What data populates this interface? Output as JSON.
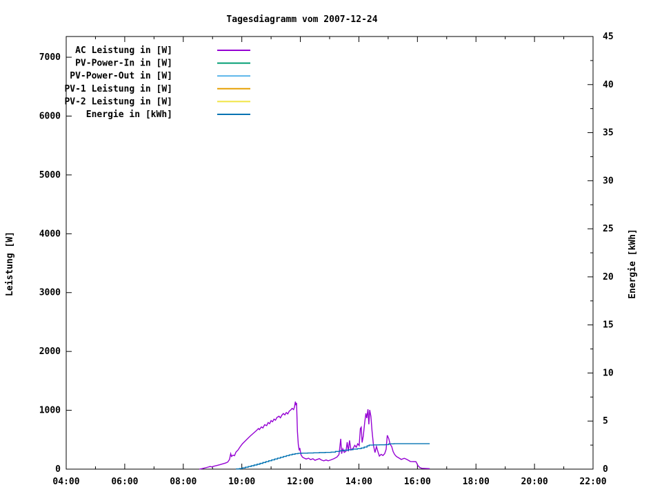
{
  "title": "Tagesdiagramm vom 2007-12-24",
  "colors": {
    "background": "#ffffff",
    "foreground": "#000000",
    "ac": "#9400d3",
    "pv_power_in": "#009e73",
    "pv_power_out": "#56b4e9",
    "pv1": "#e69f00",
    "pv2": "#f0e442",
    "energie": "#0072b2"
  },
  "chart_data": {
    "type": "line",
    "title": "Tagesdiagramm vom 2007-12-24",
    "x_axis": {
      "tick_labels": [
        "04:00",
        "06:00",
        "08:00",
        "10:00",
        "12:00",
        "14:00",
        "16:00",
        "18:00",
        "20:00",
        "22:00"
      ],
      "tick_hours": [
        4,
        6,
        8,
        10,
        12,
        14,
        16,
        18,
        20,
        22
      ],
      "minor_tick_hours": [
        5,
        7,
        9,
        11,
        13,
        15,
        17,
        19,
        21
      ],
      "range_hours": [
        4,
        22
      ],
      "grid": false
    },
    "y_axis": {
      "label": "Leistung [W]",
      "tick_values": [
        0,
        1000,
        2000,
        3000,
        4000,
        5000,
        6000,
        7000
      ],
      "range": [
        0,
        7352
      ]
    },
    "y2_axis": {
      "label": "Energie [kWh]",
      "tick_values": [
        0,
        5,
        10,
        15,
        20,
        25,
        30,
        35,
        40,
        45
      ],
      "minor_step": 2.5,
      "range": [
        0,
        45
      ]
    },
    "legend_position": "top-left-inside",
    "series": [
      {
        "name": "AC Leistung in [W]",
        "color": "#9400d3",
        "axis": "y1",
        "style": "line",
        "points": [
          [
            8.55,
            0
          ],
          [
            8.65,
            10
          ],
          [
            8.75,
            22
          ],
          [
            8.85,
            35
          ],
          [
            8.92,
            45
          ],
          [
            8.97,
            38
          ],
          [
            9.05,
            50
          ],
          [
            9.15,
            62
          ],
          [
            9.25,
            75
          ],
          [
            9.35,
            90
          ],
          [
            9.45,
            105
          ],
          [
            9.52,
            120
          ],
          [
            9.58,
            165
          ],
          [
            9.62,
            262
          ],
          [
            9.65,
            215
          ],
          [
            9.7,
            238
          ],
          [
            9.75,
            228
          ],
          [
            9.8,
            290
          ],
          [
            9.87,
            325
          ],
          [
            9.95,
            385
          ],
          [
            10.02,
            430
          ],
          [
            10.1,
            470
          ],
          [
            10.2,
            520
          ],
          [
            10.3,
            568
          ],
          [
            10.4,
            612
          ],
          [
            10.5,
            655
          ],
          [
            10.57,
            690
          ],
          [
            10.6,
            672
          ],
          [
            10.67,
            718
          ],
          [
            10.72,
            700
          ],
          [
            10.78,
            755
          ],
          [
            10.85,
            740
          ],
          [
            10.9,
            792
          ],
          [
            10.95,
            772
          ],
          [
            11.0,
            825
          ],
          [
            11.05,
            805
          ],
          [
            11.1,
            850
          ],
          [
            11.15,
            832
          ],
          [
            11.2,
            878
          ],
          [
            11.27,
            900
          ],
          [
            11.32,
            872
          ],
          [
            11.37,
            918
          ],
          [
            11.42,
            945
          ],
          [
            11.47,
            922
          ],
          [
            11.52,
            962
          ],
          [
            11.57,
            938
          ],
          [
            11.62,
            985
          ],
          [
            11.67,
            1005
          ],
          [
            11.72,
            1032
          ],
          [
            11.77,
            1012
          ],
          [
            11.8,
            1058
          ],
          [
            11.83,
            1148
          ],
          [
            11.85,
            1085
          ],
          [
            11.87,
            1125
          ],
          [
            11.9,
            640
          ],
          [
            11.93,
            420
          ],
          [
            11.96,
            320
          ],
          [
            11.98,
            360
          ],
          [
            12.02,
            248
          ],
          [
            12.07,
            205
          ],
          [
            12.12,
            190
          ],
          [
            12.2,
            172
          ],
          [
            12.28,
            186
          ],
          [
            12.35,
            162
          ],
          [
            12.43,
            176
          ],
          [
            12.5,
            150
          ],
          [
            12.58,
            166
          ],
          [
            12.65,
            178
          ],
          [
            12.72,
            155
          ],
          [
            12.8,
            142
          ],
          [
            12.88,
            156
          ],
          [
            12.95,
            142
          ],
          [
            13.05,
            158
          ],
          [
            13.15,
            178
          ],
          [
            13.25,
            205
          ],
          [
            13.32,
            248
          ],
          [
            13.38,
            515
          ],
          [
            13.41,
            262
          ],
          [
            13.45,
            345
          ],
          [
            13.5,
            285
          ],
          [
            13.56,
            305
          ],
          [
            13.6,
            458
          ],
          [
            13.64,
            302
          ],
          [
            13.68,
            488
          ],
          [
            13.73,
            325
          ],
          [
            13.8,
            352
          ],
          [
            13.86,
            405
          ],
          [
            13.91,
            372
          ],
          [
            13.96,
            432
          ],
          [
            14.01,
            400
          ],
          [
            14.05,
            688
          ],
          [
            14.08,
            712
          ],
          [
            14.11,
            452
          ],
          [
            14.15,
            562
          ],
          [
            14.2,
            798
          ],
          [
            14.24,
            948
          ],
          [
            14.27,
            868
          ],
          [
            14.31,
            1018
          ],
          [
            14.34,
            762
          ],
          [
            14.37,
            1005
          ],
          [
            14.41,
            898
          ],
          [
            14.45,
            645
          ],
          [
            14.5,
            398
          ],
          [
            14.55,
            282
          ],
          [
            14.6,
            385
          ],
          [
            14.65,
            298
          ],
          [
            14.7,
            222
          ],
          [
            14.76,
            252
          ],
          [
            14.82,
            232
          ],
          [
            14.88,
            262
          ],
          [
            14.93,
            335
          ],
          [
            14.97,
            574
          ],
          [
            15.02,
            518
          ],
          [
            15.07,
            420
          ],
          [
            15.12,
            385
          ],
          [
            15.17,
            298
          ],
          [
            15.22,
            250
          ],
          [
            15.28,
            215
          ],
          [
            15.35,
            195
          ],
          [
            15.45,
            165
          ],
          [
            15.55,
            185
          ],
          [
            15.62,
            170
          ],
          [
            15.7,
            148
          ],
          [
            15.76,
            130
          ],
          [
            15.95,
            126
          ],
          [
            16.02,
            58
          ],
          [
            16.08,
            28
          ],
          [
            16.15,
            14
          ],
          [
            16.42,
            8
          ]
        ]
      },
      {
        "name": "PV-Power-In in [W]",
        "color": "#009e73",
        "axis": "y1",
        "style": "line",
        "points": []
      },
      {
        "name": "PV-Power-Out in [W]",
        "color": "#56b4e9",
        "axis": "y1",
        "style": "line",
        "points": []
      },
      {
        "name": "PV-1 Leistung in [W]",
        "color": "#e69f00",
        "axis": "y1",
        "style": "line",
        "points": []
      },
      {
        "name": "PV-2 Leistung in [W]",
        "color": "#f0e442",
        "axis": "y1",
        "style": "line",
        "points": []
      },
      {
        "name": "Energie in [kWh]",
        "color": "#0072b2",
        "axis": "y2",
        "style": "steps",
        "points": [
          [
            9.8,
            0.02
          ],
          [
            9.92,
            0.06
          ],
          [
            10.02,
            0.13
          ],
          [
            10.12,
            0.2
          ],
          [
            10.22,
            0.27
          ],
          [
            10.32,
            0.35
          ],
          [
            10.42,
            0.43
          ],
          [
            10.52,
            0.51
          ],
          [
            10.62,
            0.6
          ],
          [
            10.72,
            0.69
          ],
          [
            10.82,
            0.78
          ],
          [
            10.92,
            0.87
          ],
          [
            11.02,
            0.96
          ],
          [
            11.12,
            1.05
          ],
          [
            11.22,
            1.14
          ],
          [
            11.32,
            1.23
          ],
          [
            11.42,
            1.32
          ],
          [
            11.52,
            1.4
          ],
          [
            11.62,
            1.48
          ],
          [
            11.72,
            1.55
          ],
          [
            11.82,
            1.61
          ],
          [
            11.92,
            1.64
          ],
          [
            12.05,
            1.66
          ],
          [
            12.25,
            1.68
          ],
          [
            12.45,
            1.7
          ],
          [
            12.65,
            1.72
          ],
          [
            12.85,
            1.74
          ],
          [
            13.05,
            1.77
          ],
          [
            13.2,
            1.84
          ],
          [
            13.35,
            1.91
          ],
          [
            13.5,
            1.97
          ],
          [
            13.65,
            2.02
          ],
          [
            13.8,
            2.08
          ],
          [
            13.95,
            2.13
          ],
          [
            14.08,
            2.2
          ],
          [
            14.18,
            2.3
          ],
          [
            14.28,
            2.42
          ],
          [
            14.35,
            2.5
          ],
          [
            14.5,
            2.52
          ],
          [
            14.7,
            2.53
          ],
          [
            14.9,
            2.55
          ],
          [
            15.02,
            2.63
          ],
          [
            15.2,
            2.65
          ],
          [
            16.42,
            2.65
          ]
        ]
      }
    ]
  }
}
